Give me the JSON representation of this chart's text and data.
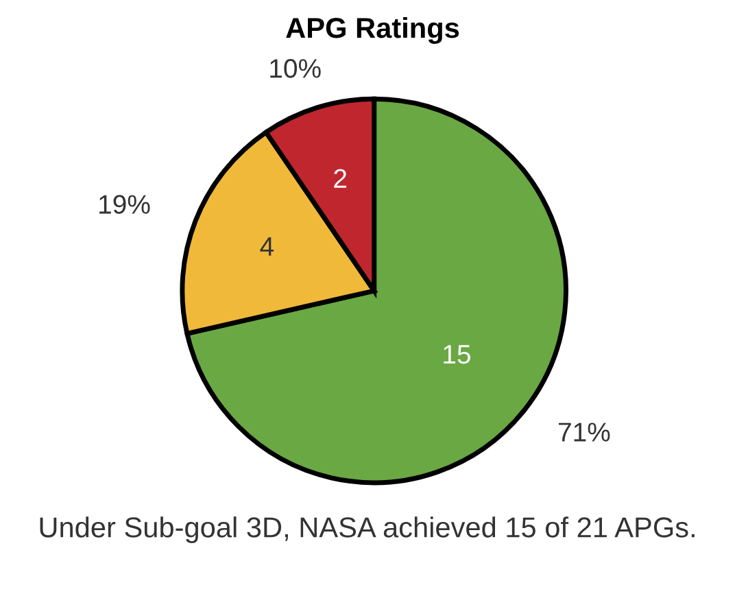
{
  "chart_data": {
    "type": "pie",
    "title": "APG Ratings",
    "categories": [
      null,
      null,
      null
    ],
    "values": [
      15,
      4,
      2
    ],
    "colors": [
      "#6aa843",
      "#f0b93a",
      "#c0262e"
    ],
    "data_labels": true,
    "annotations": [
      "71%",
      "19%",
      "10%",
      "Under Sub-goal 3D, NASA achieved 15 of 21 APGs."
    ]
  }
}
